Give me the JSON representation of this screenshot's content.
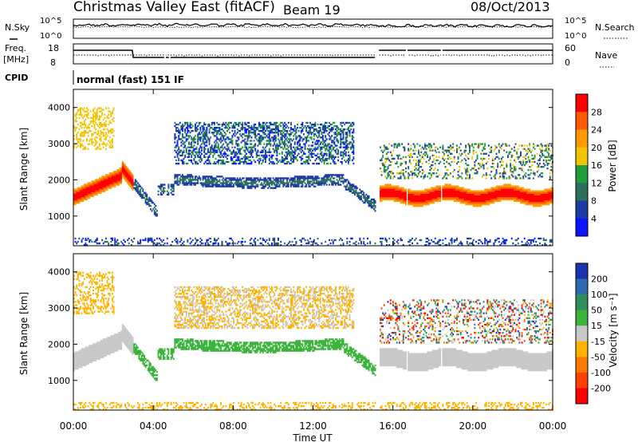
{
  "header": {
    "station": "Christmas Valley East (fitACF)",
    "beam": "Beam 19",
    "date": "08/Oct/2013"
  },
  "noise_panel": {
    "left_label": "N.Sky",
    "right_label": "N.Search",
    "left_ticks": [
      "10^5",
      "10^0"
    ],
    "right_ticks": [
      "10^5",
      "10^0"
    ]
  },
  "freq_panel": {
    "left_label_1": "Freq.",
    "left_label_2": "[MHz]",
    "right_label": "Nave",
    "left_ticks": [
      "18",
      "8"
    ],
    "right_ticks": [
      "60",
      "0"
    ]
  },
  "cpid": {
    "label": "CPID",
    "mode": "normal (fast) 151 IF"
  },
  "x_axis": {
    "ticks": [
      "00:00",
      "04:00",
      "08:00",
      "12:00",
      "16:00",
      "20:00",
      "00:00"
    ],
    "label": "Time UT"
  },
  "chart_data": [
    {
      "type": "heatmap",
      "name": "power",
      "ylabel": "Slant Range [km]",
      "yticks": [
        1000,
        2000,
        3000,
        4000
      ],
      "ylim": [
        180,
        4500
      ],
      "xlim_hours": [
        0,
        24
      ],
      "colorbar": {
        "label": "Power [dB]",
        "ticks": [
          "28",
          "24",
          "20",
          "16",
          "12",
          "8",
          "4"
        ],
        "colors": [
          "#ff0000",
          "#ff5a00",
          "#ff9a00",
          "#f2c300",
          "#1e9e3c",
          "#2b6f5f",
          "#1e3ca8",
          "#0a14ff"
        ]
      }
    },
    {
      "type": "heatmap",
      "name": "velocity",
      "ylabel": "Slant Range [km]",
      "yticks": [
        1000,
        2000,
        3000,
        4000
      ],
      "ylim": [
        180,
        4500
      ],
      "xlim_hours": [
        0,
        24
      ],
      "colorbar": {
        "label": "Velocity [m s⁻¹]",
        "ticks": [
          "200",
          "100",
          "50",
          "15",
          "-15",
          "-50",
          "-100",
          "-200"
        ],
        "colors": [
          "#1a33b0",
          "#2e6bb0",
          "#2f8f5a",
          "#3cb43c",
          "#c8c8c8",
          "#ffb300",
          "#ff7a00",
          "#ff4000",
          "#ff0000"
        ]
      }
    }
  ]
}
